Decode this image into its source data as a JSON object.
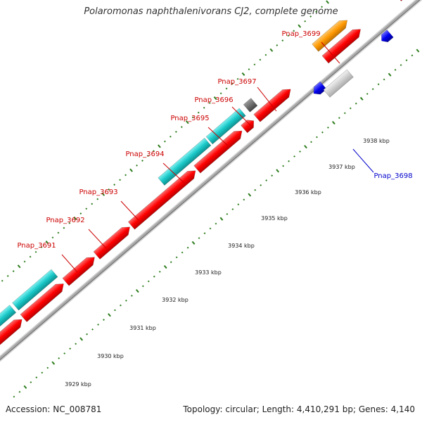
{
  "title": "Polaromonas naphthalenivorans CJ2, complete genome",
  "footer": {
    "accession": "Accession: NC_008781",
    "summary": "Topology: circular; Length: 4,410,291 bp; Genes: 4,140"
  },
  "colors": {
    "backbone": "#a9a9a9",
    "tick": "#2e7d1e",
    "label_red": "#cc0000",
    "label_blue": "#0000cc",
    "cds": "#ff0000",
    "cyan": "#19c8c8",
    "orange": "#ff9900",
    "gray_dark": "#666666",
    "gray_light": "#cccccc",
    "pink": "#ee8888",
    "blue": "#0000ee"
  },
  "scale": {
    "unit": "kbp",
    "ticks": [
      {
        "kbp": 3929,
        "label": "3929 kbp"
      },
      {
        "kbp": 3930,
        "label": "3930 kbp"
      },
      {
        "kbp": 3931,
        "label": "3931 kbp"
      },
      {
        "kbp": 3932,
        "label": "3932 kbp"
      },
      {
        "kbp": 3933,
        "label": "3933 kbp"
      },
      {
        "kbp": 3934,
        "label": "3934 kbp"
      },
      {
        "kbp": 3935,
        "label": "3935 kbp"
      },
      {
        "kbp": 3936,
        "label": "3936 kbp"
      },
      {
        "kbp": 3937,
        "label": "3937 kbp"
      },
      {
        "kbp": 3938,
        "label": "3938 kbp"
      }
    ]
  },
  "gene_labels": [
    {
      "name": "Pnap_3691",
      "color": "red"
    },
    {
      "name": "Pnap_3692",
      "color": "red"
    },
    {
      "name": "Pnap_3693",
      "color": "red"
    },
    {
      "name": "Pnap_3694",
      "color": "red"
    },
    {
      "name": "Pnap_3695",
      "color": "red"
    },
    {
      "name": "Pnap_3696",
      "color": "red"
    },
    {
      "name": "Pnap_3697",
      "color": "red"
    },
    {
      "name": "Pnap_3699",
      "color": "red"
    },
    {
      "name": "Pnap_3698",
      "color": "blue"
    }
  ]
}
